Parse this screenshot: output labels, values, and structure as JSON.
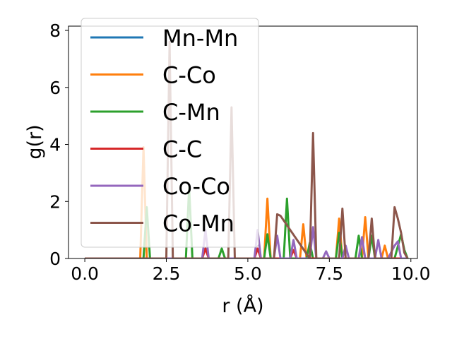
{
  "chart_data": {
    "type": "line",
    "xlabel": "r (Å)",
    "ylabel": "g(r)",
    "xlim": [
      -0.5,
      10.2
    ],
    "ylim": [
      0,
      8.15
    ],
    "xticks": [
      0.0,
      2.5,
      5.0,
      7.5,
      10.0
    ],
    "xtick_labels": [
      "0.0",
      "2.5",
      "5.0",
      "7.5",
      "10.0"
    ],
    "yticks": [
      0,
      2,
      4,
      6,
      8
    ],
    "ytick_labels": [
      "0",
      "2",
      "4",
      "6",
      "8"
    ],
    "grid": false,
    "legend_position": "top-left",
    "series": [
      {
        "name": "Mn-Mn",
        "color": "#1f77b4",
        "x": [
          0.0,
          9.9
        ],
        "y": [
          0.0,
          0.0
        ]
      },
      {
        "name": "C-Co",
        "color": "#ff7f0e",
        "x": [
          0.0,
          1.7,
          1.8,
          1.9,
          5.5,
          5.6,
          5.7,
          6.6,
          6.7,
          6.8,
          7.7,
          7.8,
          7.9,
          8.5,
          8.6,
          8.7,
          9.1,
          9.2,
          9.3,
          9.9
        ],
        "y": [
          0.0,
          0.0,
          3.9,
          0.0,
          0.0,
          2.1,
          0.0,
          0.0,
          1.2,
          0.0,
          0.0,
          1.4,
          0.0,
          0.0,
          1.45,
          0.0,
          0.0,
          0.45,
          0.0,
          0.0
        ]
      },
      {
        "name": "C-Mn",
        "color": "#2ca02c",
        "x": [
          0.0,
          1.8,
          1.9,
          2.0,
          3.1,
          3.2,
          3.3,
          4.1,
          4.2,
          4.3,
          5.5,
          5.6,
          5.7,
          6.1,
          6.2,
          6.3,
          6.8,
          6.9,
          7.0,
          7.7,
          7.8,
          7.9,
          8.3,
          8.4,
          8.5,
          8.7,
          8.8,
          8.9,
          9.5,
          9.7,
          9.8,
          9.9
        ],
        "y": [
          0.0,
          0.0,
          1.8,
          0.0,
          0.0,
          2.5,
          0.0,
          0.0,
          0.35,
          0.0,
          0.0,
          0.85,
          0.0,
          0.0,
          2.1,
          0.0,
          0.0,
          0.55,
          0.0,
          0.0,
          0.9,
          0.0,
          0.0,
          0.8,
          0.0,
          0.0,
          0.8,
          0.0,
          0.0,
          0.85,
          0.3,
          0.0
        ]
      },
      {
        "name": "C-C",
        "color": "#d62728",
        "x": [
          0.0,
          3.6,
          3.7,
          3.8,
          5.2,
          5.3,
          5.4,
          6.3,
          6.4,
          6.5,
          9.9
        ],
        "y": [
          0.0,
          0.0,
          0.35,
          0.0,
          0.0,
          0.35,
          0.0,
          0.0,
          0.3,
          0.0,
          0.0
        ]
      },
      {
        "name": "Co-Co",
        "color": "#9467bd",
        "x": [
          0.0,
          3.6,
          3.7,
          3.8,
          5.2,
          5.3,
          5.4,
          5.8,
          5.9,
          6.0,
          6.3,
          6.4,
          6.5,
          6.9,
          7.0,
          7.1,
          7.3,
          7.4,
          7.5,
          7.9,
          8.0,
          8.1,
          8.4,
          8.5,
          8.6,
          8.9,
          9.0,
          9.1,
          9.3,
          9.5,
          9.6,
          9.7,
          9.9
        ],
        "y": [
          0.0,
          0.0,
          1.0,
          0.0,
          0.0,
          1.0,
          0.0,
          0.0,
          0.8,
          0.0,
          0.0,
          0.65,
          0.0,
          0.0,
          1.1,
          0.0,
          0.0,
          0.25,
          0.0,
          0.0,
          0.45,
          0.0,
          0.0,
          0.75,
          0.0,
          0.0,
          0.65,
          0.0,
          0.0,
          0.45,
          0.6,
          0.0,
          0.0
        ]
      },
      {
        "name": "Co-Mn",
        "color": "#8c564b",
        "x": [
          0.0,
          2.5,
          2.6,
          2.7,
          4.4,
          4.5,
          4.6,
          5.8,
          5.9,
          6.0,
          6.9,
          7.0,
          7.1,
          7.8,
          7.9,
          8.0,
          8.7,
          8.8,
          8.9,
          9.4,
          9.5,
          9.6,
          9.7,
          9.8,
          9.9
        ],
        "y": [
          0.0,
          0.0,
          7.6,
          0.0,
          0.0,
          5.3,
          0.0,
          0.0,
          1.55,
          1.5,
          0.0,
          4.4,
          0.0,
          0.0,
          1.75,
          0.0,
          0.0,
          1.4,
          0.0,
          0.0,
          1.8,
          1.4,
          0.9,
          0.2,
          0.0
        ]
      }
    ]
  }
}
